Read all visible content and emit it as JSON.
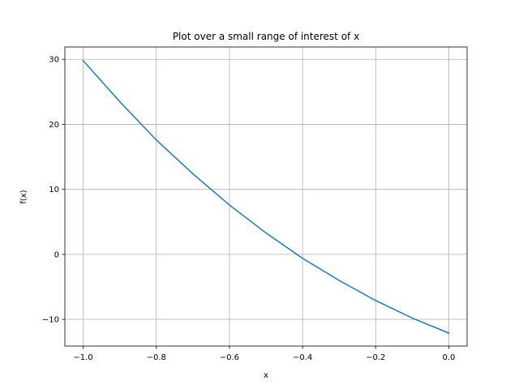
{
  "chart_data": {
    "type": "line",
    "title": "Plot over a small range of interest of x",
    "xlabel": "x",
    "ylabel": "f(x)",
    "xlim": [
      -1.05,
      0.05
    ],
    "ylim": [
      -14.1,
      31.9
    ],
    "grid": true,
    "x_ticks": [
      -1.0,
      -0.8,
      -0.6,
      -0.4,
      -0.2,
      0.0
    ],
    "x_tick_labels": [
      "−1.0",
      "−0.8",
      "−0.6",
      "−0.4",
      "−0.2",
      "0.0"
    ],
    "y_ticks": [
      -10,
      0,
      10,
      20,
      30
    ],
    "y_tick_labels": [
      "−10",
      "0",
      "10",
      "20",
      "30"
    ],
    "series": [
      {
        "color": "#1f77b4",
        "x": [
          -1.0,
          -0.9,
          -0.8,
          -0.7,
          -0.6,
          -0.5,
          -0.4,
          -0.3,
          -0.2,
          -0.1,
          0.0
        ],
        "y": [
          29.8,
          23.5,
          17.6,
          12.4,
          7.6,
          3.3,
          -0.6,
          -4.0,
          -7.1,
          -9.8,
          -12.1
        ]
      }
    ]
  }
}
